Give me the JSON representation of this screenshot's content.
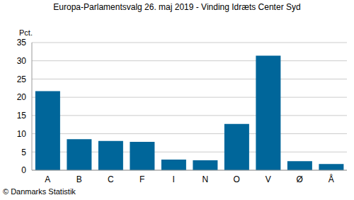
{
  "chart_data": {
    "type": "bar",
    "title": "Europa-Parlamentsvalg 26. maj 2019 - Vinding Idræts Center Syd",
    "ylabel": "Pct.",
    "annotations": [
      "© Danmarks Statistik"
    ],
    "categories": [
      "A",
      "B",
      "C",
      "F",
      "I",
      "N",
      "O",
      "V",
      "Ø",
      "Å"
    ],
    "values": [
      21.7,
      8.5,
      8.0,
      7.8,
      2.9,
      2.7,
      12.7,
      31.4,
      2.5,
      1.7
    ],
    "color": "#00669a",
    "ylim": [
      0,
      35
    ],
    "yticks": [
      0,
      5,
      10,
      15,
      20,
      25,
      30,
      35
    ],
    "grid": true
  }
}
